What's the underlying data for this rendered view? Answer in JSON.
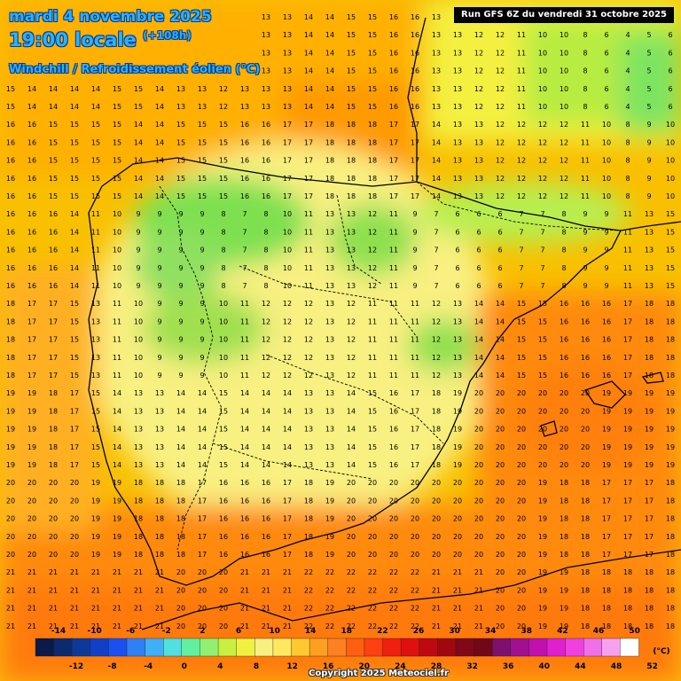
{
  "header": {
    "date": "mardi 4 novembre 2025",
    "time": "19:00 locale",
    "lead": "(+108h)",
    "parameter": "Windchill / Refroidissement éolien (°C)"
  },
  "run_label": "Run GFS 6Z du vendredi 31 octobre 2025",
  "copyright": "Copyright 2025 Meteociel.fr",
  "legend": {
    "unit": "(°C)",
    "top_labels": [
      "-14",
      "-10",
      "-6",
      "-2",
      "2",
      "6",
      "10",
      "14",
      "18",
      "22",
      "26",
      "30",
      "34",
      "38",
      "42",
      "46",
      "50"
    ],
    "bottom_labels": [
      "-12",
      "-8",
      "-4",
      "0",
      "4",
      "8",
      "12",
      "16",
      "20",
      "24",
      "28",
      "32",
      "36",
      "40",
      "44",
      "48",
      "52"
    ],
    "colors": [
      "#0a1a4a",
      "#0c2a6e",
      "#0d3a9a",
      "#1040c8",
      "#1a50f0",
      "#2f7ff5",
      "#3fb0f5",
      "#50e0e0",
      "#60f0a0",
      "#90f070",
      "#c8f040",
      "#f0f040",
      "#f8f080",
      "#ffe860",
      "#ffc830",
      "#ffa020",
      "#ff8020",
      "#ff6010",
      "#ff4010",
      "#f02010",
      "#e01010",
      "#c00810",
      "#a00810",
      "#800818",
      "#700818",
      "#801070",
      "#a01090",
      "#c010b0",
      "#e020d0",
      "#f040e0",
      "#f070e8",
      "#f8a0f0",
      "#ffffff"
    ]
  },
  "map": {
    "region": "Iberian Peninsula",
    "grid_rows_sample": [
      [
        "15",
        "14",
        "14",
        "14",
        "14",
        "15",
        "15",
        "14",
        "13",
        "13",
        "12",
        "13",
        "13",
        "13",
        "14",
        "14",
        "15",
        "15",
        "16",
        "16",
        "13",
        "13",
        "12",
        "12",
        "11",
        "10",
        "10",
        "8",
        "6",
        "4",
        "5",
        "6"
      ],
      [
        "16",
        "16",
        "15",
        "15",
        "15",
        "15",
        "14",
        "14",
        "15",
        "15",
        "15",
        "16",
        "16",
        "17",
        "17",
        "18",
        "18",
        "18",
        "17",
        "17",
        "14",
        "13",
        "13",
        "12",
        "12",
        "12",
        "12",
        "11",
        "10",
        "8",
        "9",
        "10"
      ],
      [
        "16",
        "16",
        "16",
        "14",
        "11",
        "10",
        "9",
        "9",
        "9",
        "9",
        "8",
        "7",
        "8",
        "10",
        "11",
        "13",
        "13",
        "12",
        "11",
        "9",
        "7",
        "6",
        "6",
        "6",
        "7",
        "7",
        "8",
        "9",
        "9",
        "11",
        "13",
        "15"
      ],
      [
        "18",
        "17",
        "17",
        "15",
        "13",
        "11",
        "10",
        "9",
        "9",
        "9",
        "10",
        "11",
        "12",
        "12",
        "12",
        "13",
        "12",
        "11",
        "11",
        "11",
        "12",
        "13",
        "14",
        "14",
        "15",
        "15",
        "16",
        "16",
        "16",
        "17",
        "18",
        "18"
      ],
      [
        "19",
        "19",
        "18",
        "17",
        "15",
        "14",
        "13",
        "13",
        "14",
        "14",
        "15",
        "14",
        "14",
        "14",
        "13",
        "13",
        "14",
        "15",
        "16",
        "17",
        "18",
        "19",
        "20",
        "20",
        "20",
        "20",
        "20",
        "20",
        "19",
        "19",
        "19",
        "19"
      ],
      [
        "20",
        "20",
        "20",
        "20",
        "19",
        "19",
        "18",
        "18",
        "18",
        "17",
        "16",
        "16",
        "16",
        "17",
        "18",
        "19",
        "20",
        "20",
        "20",
        "20",
        "20",
        "20",
        "20",
        "20",
        "20",
        "19",
        "18",
        "18",
        "17",
        "17",
        "17",
        "18"
      ],
      [
        "21",
        "21",
        "21",
        "21",
        "21",
        "21",
        "21",
        "21",
        "20",
        "20",
        "20",
        "21",
        "21",
        "21",
        "22",
        "22",
        "22",
        "22",
        "22",
        "22",
        "21",
        "21",
        "21",
        "20",
        "20",
        "19",
        "19",
        "18",
        "18",
        "18",
        "18",
        "18"
      ]
    ]
  }
}
